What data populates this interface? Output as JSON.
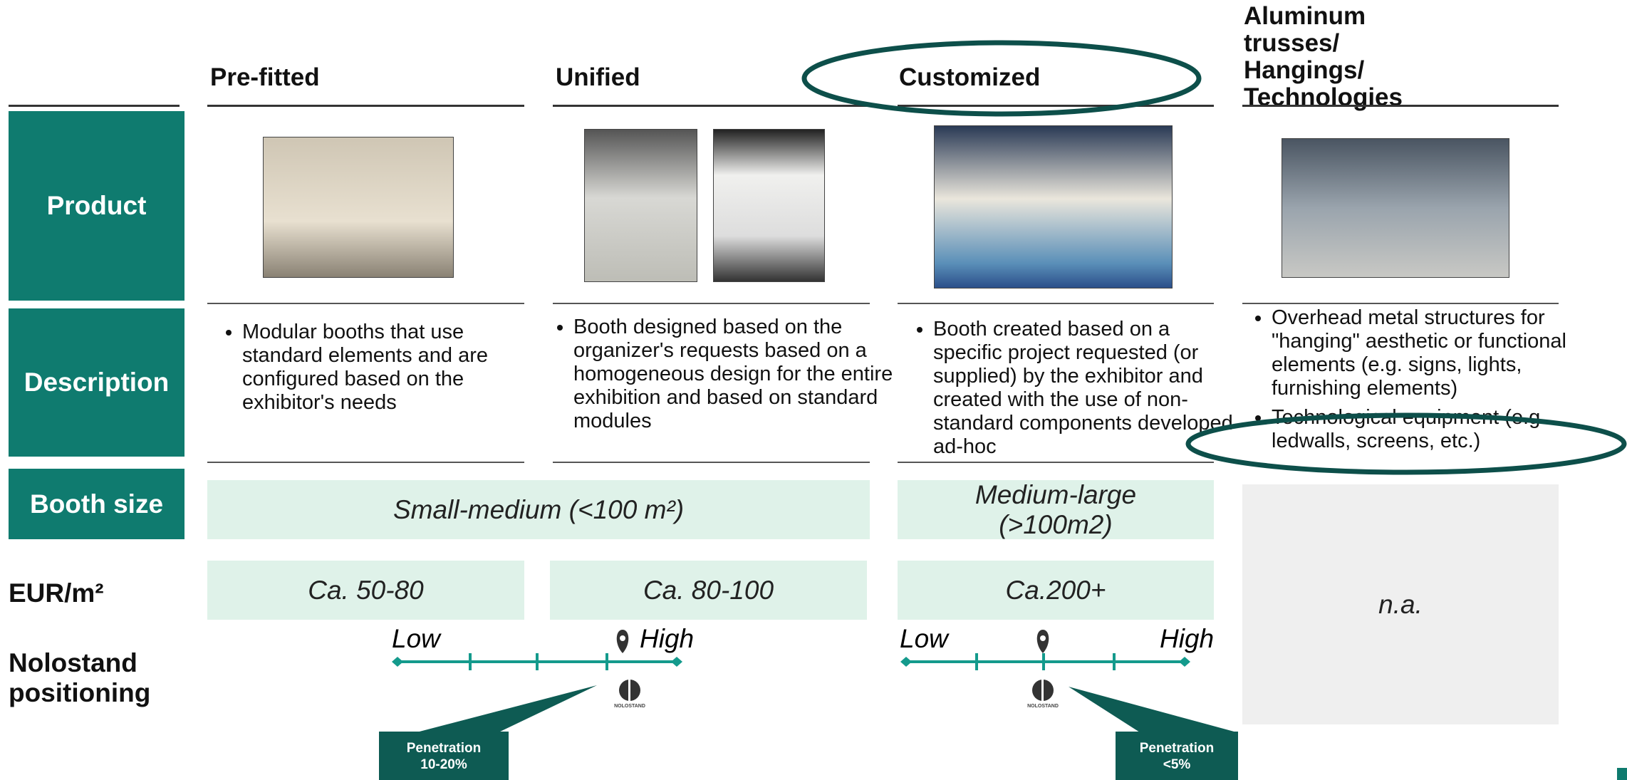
{
  "rows": [
    "Product",
    "Description",
    "Booth size",
    "EUR/m²",
    "Nolostand positioning"
  ],
  "columns": [
    {
      "title": "Pre-fitted",
      "description": [
        "Modular booths that use standard elements and are configured based on the exhibitor's needs"
      ]
    },
    {
      "title": "Unified",
      "description": [
        "Booth designed based on the organizer's requests based on a homogeneous design for the entire exhibition and based on standard modules"
      ]
    },
    {
      "title": "Customized",
      "description": [
        "Booth created based on a specific project requested (or supplied) by the exhibitor and created with the use of non-standard components developed ad-hoc"
      ]
    },
    {
      "title": "Aluminum trusses/ Hangings/ Technologies",
      "description": [
        "Overhead metal structures for \"hanging\" aesthetic or functional elements (e.g. signs, lights, furnishing elements)",
        "Technological equipment (e.g. ledwalls, screens, etc.)"
      ]
    }
  ],
  "booth_size": [
    "Small-medium (<100 m²)",
    "Medium-large (>100m2)"
  ],
  "eur_m2": [
    "Ca. 50-80",
    "Ca. 80-100",
    "Ca.200+"
  ],
  "not_available": "n.a.",
  "positioning": [
    {
      "low": "Low",
      "high": "High",
      "logo": "NOLOSTAND",
      "penetration": [
        "Penetration",
        "10-20%"
      ]
    },
    {
      "low": "Low",
      "high": "High",
      "logo": "NOLOSTAND",
      "penetration": [
        "Penetration",
        "<5%"
      ]
    }
  ]
}
